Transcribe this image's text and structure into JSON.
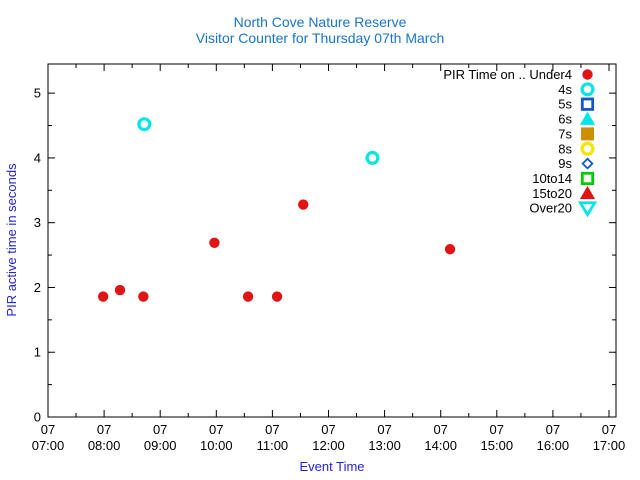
{
  "chart_data": {
    "type": "scatter",
    "title_lines": [
      "North Cove Nature Reserve",
      "Visitor Counter for Thursday 07th March"
    ],
    "xlabel": "Event Time",
    "ylabel": "PIR active time in seconds",
    "x_axis": {
      "date_label": "07",
      "tick_times": [
        "07:00",
        "08:00",
        "09:00",
        "10:00",
        "11:00",
        "12:00",
        "13:00",
        "14:00",
        "15:00",
        "16:00",
        "17:00"
      ],
      "min_hour": 7,
      "max_hour": 17.125,
      "minor_tick_interval_hours": 0.5,
      "grid": false
    },
    "y_axis": {
      "ticks": [
        "0",
        "1",
        "2",
        "3",
        "4",
        "5"
      ],
      "min": 0,
      "max": 5.45,
      "minor_tick_interval": 0.5,
      "grid": false
    },
    "legend_position": "top-right-inside",
    "series": [
      {
        "name": "PIR Time on .. Under4",
        "marker": "circle-filled",
        "color": "#e01414",
        "points": [
          {
            "time": "07:59",
            "seconds": 1.86
          },
          {
            "time": "08:17",
            "seconds": 1.96
          },
          {
            "time": "08:42",
            "seconds": 1.86
          },
          {
            "time": "09:58",
            "seconds": 2.69
          },
          {
            "time": "10:34",
            "seconds": 1.86
          },
          {
            "time": "11:05",
            "seconds": 1.86
          },
          {
            "time": "11:33",
            "seconds": 3.28
          },
          {
            "time": "14:10",
            "seconds": 2.59
          }
        ]
      },
      {
        "name": "4s",
        "marker": "circle-open",
        "color": "#00e6e6",
        "points": [
          {
            "time": "08:43",
            "seconds": 4.52
          },
          {
            "time": "12:47",
            "seconds": 4.0
          }
        ]
      },
      {
        "name": "5s",
        "marker": "square-open",
        "color": "#1159c8",
        "points": []
      },
      {
        "name": "6s",
        "marker": "triangle-up-filled",
        "color": "#00e6e6",
        "points": []
      },
      {
        "name": "7s",
        "marker": "square-filled",
        "color": "#cc8f00",
        "points": []
      },
      {
        "name": "8s",
        "marker": "circle-open",
        "color": "#f2e500",
        "points": []
      },
      {
        "name": "9s",
        "marker": "diamond-open",
        "color": "#1159c8",
        "points": []
      },
      {
        "name": "10to14",
        "marker": "square-open",
        "color": "#00cc00",
        "points": []
      },
      {
        "name": "15to20",
        "marker": "triangle-up-filled",
        "color": "#e01414",
        "points": []
      },
      {
        "name": "Over20",
        "marker": "triangle-down-open",
        "color": "#00e6e6",
        "points": []
      }
    ]
  },
  "colors": {
    "title": "#1874cd",
    "axis_label": "#2222dd",
    "tick_label": "#000000",
    "frame": "#000000",
    "legend_text": "#000000",
    "background": "#ffffff"
  }
}
